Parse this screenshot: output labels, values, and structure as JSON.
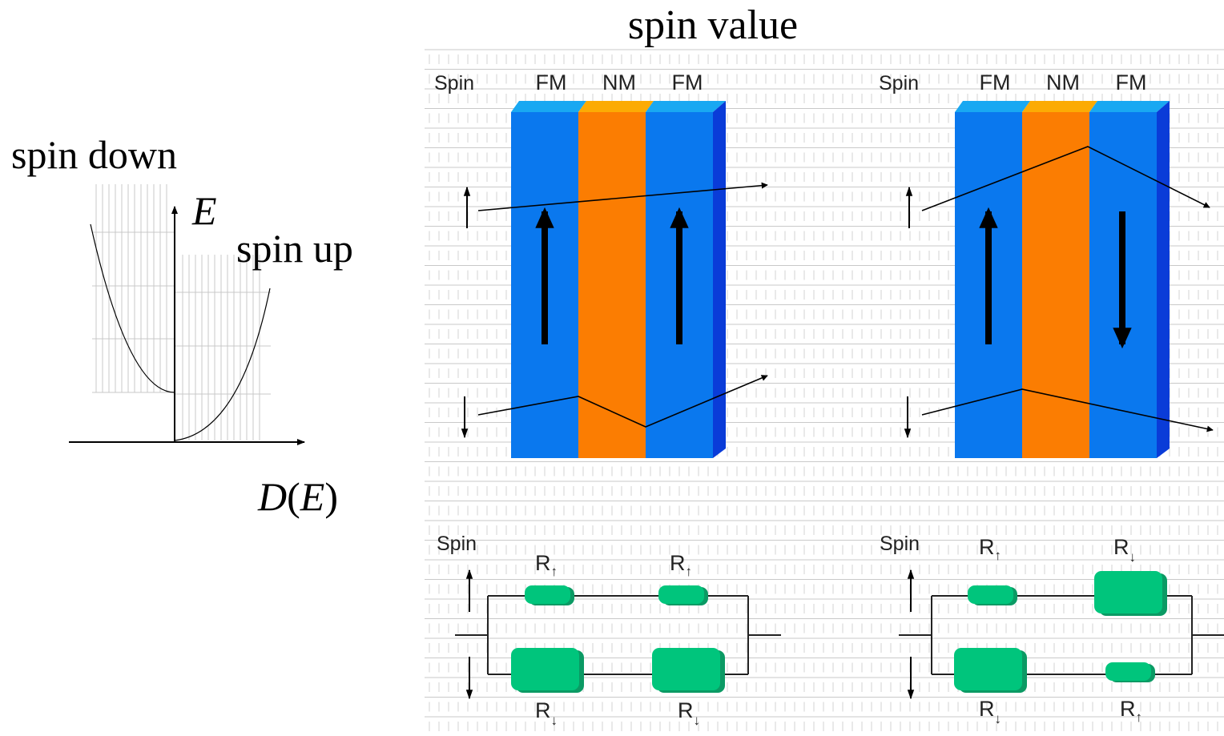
{
  "title": "spin value",
  "dos": {
    "spin_down_label": "spin down",
    "spin_up_label": "spin up",
    "y_axis": "E",
    "x_axis_func": "D",
    "x_axis_arg": "E"
  },
  "valve_parallel": {
    "spin_label": "Spin",
    "layers": [
      "FM",
      "NM",
      "FM"
    ],
    "magnetization": [
      "up",
      "up"
    ]
  },
  "valve_antiparallel": {
    "spin_label": "Spin",
    "layers": [
      "FM",
      "NM",
      "FM"
    ],
    "magnetization": [
      "up",
      "down"
    ]
  },
  "circuit_parallel": {
    "spin_label": "Spin",
    "top_resistors": [
      "R",
      "R"
    ],
    "top_subscripts": [
      "↑",
      "↑"
    ],
    "bottom_resistors": [
      "R",
      "R"
    ],
    "bottom_subscripts": [
      "↓",
      "↓"
    ]
  },
  "circuit_antiparallel": {
    "spin_label": "Spin",
    "top_resistors": [
      "R",
      "R"
    ],
    "top_subscripts": [
      "↑",
      "↓"
    ],
    "bottom_resistors": [
      "R",
      "R"
    ],
    "bottom_subscripts": [
      "↓",
      "↑"
    ]
  },
  "colors": {
    "fm": "#0a78ee",
    "fm_dark": "#0a3cd8",
    "fm_top": "#19a8f2",
    "nm": "#fb7d02",
    "nm_top": "#fcab04",
    "resistor": "#00c57c",
    "resistor_edge": "#0b9a64",
    "grid": "#c9c9c9"
  }
}
